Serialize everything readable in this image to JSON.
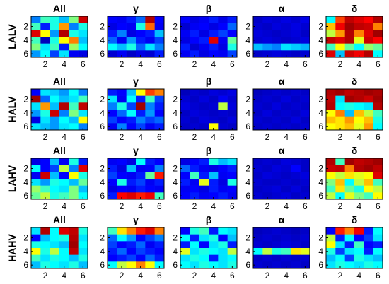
{
  "chart_data": {
    "type": "heatmap",
    "row_labels": [
      "LALV",
      "HALV",
      "LAHV",
      "HAHV"
    ],
    "column_titles": [
      [
        "All",
        "γ",
        "β",
        "α",
        "δ"
      ],
      [
        "All",
        "γ",
        "β",
        "α",
        "δ"
      ],
      [
        "All",
        "γ",
        "β",
        "α",
        "δ"
      ],
      [
        "All",
        "γ",
        "β",
        "α",
        "δ"
      ]
    ],
    "x_ticks": [
      "2",
      "4",
      "6"
    ],
    "y_ticks": [
      "2",
      "4",
      "6"
    ],
    "grid_size": 6,
    "colormap": [
      "#00008f",
      "#0000ff",
      "#00ffff",
      "#ffff00",
      "#ff0000",
      "#800000"
    ],
    "value_range": [
      0,
      1
    ],
    "panels": [
      [
        [
          [
            0.3,
            0.45,
            0.42,
            0.35,
            0.5,
            0.88
          ],
          [
            0.45,
            0.22,
            0.42,
            0.68,
            0.3,
            0.42
          ],
          [
            0.85,
            0.6,
            0.32,
            0.92,
            0.42,
            0.38
          ],
          [
            0.45,
            0.08,
            0.42,
            0.6,
            0.7,
            0.35
          ],
          [
            0.5,
            0.38,
            0.45,
            0.22,
            0.52,
            0.4
          ],
          [
            0.32,
            0.4,
            0.25,
            0.38,
            0.18,
            0.15
          ]
        ],
        [
          [
            0.2,
            0.18,
            0.22,
            0.28,
            0.92,
            0.2
          ],
          [
            0.15,
            0.2,
            0.18,
            0.42,
            0.72,
            0.18
          ],
          [
            0.22,
            0.3,
            0.15,
            0.2,
            0.22,
            0.35
          ],
          [
            0.28,
            0.18,
            0.32,
            0.22,
            0.18,
            0.25
          ],
          [
            0.4,
            0.35,
            0.42,
            0.28,
            0.38,
            0.3
          ],
          [
            0.12,
            0.18,
            0.1,
            0.15,
            0.12,
            0.22
          ]
        ],
        [
          [
            0.2,
            0.15,
            0.18,
            0.22,
            0.16,
            0.22
          ],
          [
            0.12,
            0.18,
            0.2,
            0.15,
            0.2,
            0.28
          ],
          [
            0.18,
            0.22,
            0.15,
            0.22,
            0.25,
            0.2
          ],
          [
            0.15,
            0.2,
            0.22,
            0.85,
            0.18,
            0.48
          ],
          [
            0.22,
            0.12,
            0.18,
            0.22,
            0.15,
            0.42
          ],
          [
            0.18,
            0.22,
            0.15,
            0.2,
            0.18,
            0.25
          ]
        ],
        [
          [
            0.1,
            0.14,
            0.12,
            0.15,
            0.12,
            0.16
          ],
          [
            0.12,
            0.1,
            0.14,
            0.12,
            0.15,
            0.12
          ],
          [
            0.14,
            0.12,
            0.1,
            0.12,
            0.14,
            0.1
          ],
          [
            0.12,
            0.14,
            0.12,
            0.1,
            0.12,
            0.14
          ],
          [
            0.35,
            0.32,
            0.3,
            0.38,
            0.36,
            0.34
          ],
          [
            0.1,
            0.12,
            0.14,
            0.12,
            0.1,
            0.12
          ]
        ],
        [
          [
            0.4,
            0.75,
            0.9,
            0.85,
            0.8,
            0.92
          ],
          [
            0.65,
            0.82,
            0.95,
            0.9,
            0.88,
            0.7
          ],
          [
            0.55,
            0.68,
            0.92,
            0.7,
            0.85,
            0.95
          ],
          [
            0.9,
            0.85,
            0.92,
            0.58,
            0.88,
            0.8
          ],
          [
            0.45,
            0.6,
            0.48,
            0.4,
            0.52,
            0.48
          ],
          [
            0.85,
            0.35,
            0.88,
            0.82,
            0.92,
            0.4
          ]
        ]
      ],
      [
        [
          [
            0.2,
            0.38,
            0.36,
            0.32,
            0.4,
            0.3
          ],
          [
            0.95,
            0.28,
            0.4,
            0.35,
            0.38,
            0.45
          ],
          [
            0.38,
            0.68,
            0.35,
            0.92,
            0.45,
            0.9
          ],
          [
            0.32,
            0.42,
            0.88,
            0.3,
            0.5,
            0.38
          ],
          [
            0.15,
            0.38,
            0.32,
            0.4,
            0.35,
            0.6
          ],
          [
            0.38,
            0.35,
            0.32,
            0.38,
            0.4,
            0.3
          ]
        ],
        [
          [
            0.22,
            0.2,
            0.35,
            0.6,
            0.75,
            0.7
          ],
          [
            0.38,
            0.18,
            0.4,
            0.22,
            0.45,
            0.25
          ],
          [
            0.3,
            0.42,
            0.25,
            0.95,
            0.3,
            0.22
          ],
          [
            0.2,
            0.28,
            0.4,
            0.22,
            0.32,
            0.2
          ],
          [
            0.25,
            0.2,
            0.22,
            0.3,
            0.25,
            0.28
          ],
          [
            0.18,
            0.3,
            0.2,
            0.25,
            0.18,
            0.22
          ]
        ],
        [
          [
            0.08,
            0.12,
            0.1,
            0.14,
            0.12,
            0.15
          ],
          [
            0.12,
            0.1,
            0.14,
            0.1,
            0.18,
            0.12
          ],
          [
            0.15,
            0.12,
            0.1,
            0.12,
            0.55,
            0.14
          ],
          [
            0.1,
            0.14,
            0.12,
            0.1,
            0.12,
            0.1
          ],
          [
            0.12,
            0.1,
            0.14,
            0.12,
            0.1,
            0.14
          ],
          [
            0.1,
            0.12,
            0.1,
            0.6,
            0.12,
            0.1
          ]
        ],
        [
          [
            0.08,
            0.1,
            0.12,
            0.1,
            0.12,
            0.1
          ],
          [
            0.1,
            0.12,
            0.1,
            0.14,
            0.1,
            0.12
          ],
          [
            0.12,
            0.1,
            0.14,
            0.1,
            0.12,
            0.1
          ],
          [
            0.1,
            0.14,
            0.1,
            0.12,
            0.1,
            0.14
          ],
          [
            0.12,
            0.1,
            0.12,
            0.1,
            0.14,
            0.1
          ],
          [
            0.1,
            0.12,
            0.1,
            0.12,
            0.1,
            0.12
          ]
        ],
        [
          [
            0.92,
            0.95,
            0.9,
            0.92,
            0.95,
            0.93
          ],
          [
            0.9,
            0.38,
            0.95,
            0.92,
            0.88,
            0.95
          ],
          [
            0.92,
            0.4,
            0.42,
            0.4,
            0.38,
            0.92
          ],
          [
            0.6,
            0.7,
            0.35,
            0.65,
            0.55,
            0.45
          ],
          [
            0.65,
            0.62,
            0.68,
            0.6,
            0.65,
            0.42
          ],
          [
            0.6,
            0.62,
            0.65,
            0.58,
            0.68,
            0.4
          ]
        ]
      ],
      [
        [
          [
            0.15,
            0.2,
            0.35,
            0.18,
            0.42,
            0.22
          ],
          [
            0.4,
            0.2,
            0.25,
            0.55,
            0.3,
            0.85
          ],
          [
            0.18,
            0.88,
            0.35,
            0.2,
            0.6,
            0.42
          ],
          [
            0.38,
            0.32,
            0.42,
            0.4,
            0.35,
            0.48
          ],
          [
            0.52,
            0.45,
            0.4,
            0.38,
            0.5,
            0.35
          ],
          [
            0.48,
            0.55,
            0.42,
            0.45,
            0.5,
            0.4
          ]
        ],
        [
          [
            0.18,
            0.2,
            0.15,
            0.4,
            0.22,
            0.2
          ],
          [
            0.22,
            0.15,
            0.35,
            0.18,
            0.2,
            0.3
          ],
          [
            0.25,
            0.2,
            0.18,
            0.22,
            0.48,
            0.78
          ],
          [
            0.2,
            0.42,
            0.22,
            0.25,
            0.18,
            0.22
          ],
          [
            0.15,
            0.2,
            0.18,
            0.22,
            0.2,
            0.18
          ],
          [
            0.22,
            0.8,
            0.85,
            0.78,
            0.82,
            0.45
          ]
        ],
        [
          [
            0.15,
            0.2,
            0.22,
            0.42,
            0.35,
            0.38
          ],
          [
            0.28,
            0.22,
            0.18,
            0.15,
            0.2,
            0.22
          ],
          [
            0.2,
            0.45,
            0.22,
            0.35,
            0.18,
            0.2
          ],
          [
            0.22,
            0.18,
            0.58,
            0.22,
            0.15,
            0.42
          ],
          [
            0.18,
            0.2,
            0.15,
            0.22,
            0.18,
            0.2
          ],
          [
            0.2,
            0.22,
            0.18,
            0.2,
            0.22,
            0.18
          ]
        ],
        [
          [
            0.1,
            0.12,
            0.1,
            0.14,
            0.12,
            0.1
          ],
          [
            0.12,
            0.1,
            0.14,
            0.12,
            0.2,
            0.1
          ],
          [
            0.1,
            0.14,
            0.12,
            0.1,
            0.12,
            0.14
          ],
          [
            0.12,
            0.1,
            0.1,
            0.12,
            0.1,
            0.12
          ],
          [
            0.1,
            0.12,
            0.14,
            0.1,
            0.14,
            0.1
          ],
          [
            0.12,
            0.1,
            0.12,
            0.14,
            0.1,
            0.12
          ]
        ],
        [
          [
            0.92,
            0.45,
            0.95,
            0.9,
            0.92,
            0.95
          ],
          [
            0.88,
            0.9,
            0.7,
            0.92,
            0.95,
            0.9
          ],
          [
            0.6,
            0.55,
            0.62,
            0.58,
            0.6,
            0.85
          ],
          [
            0.5,
            0.65,
            0.4,
            0.55,
            0.65,
            0.45
          ],
          [
            0.45,
            0.62,
            0.48,
            0.42,
            0.6,
            0.55
          ],
          [
            0.55,
            0.4,
            0.58,
            0.5,
            0.45,
            0.6
          ]
        ]
      ],
      [
        [
          [
            0.38,
            0.92,
            0.4,
            0.85,
            0.9,
            0.42
          ],
          [
            0.2,
            0.35,
            0.4,
            0.42,
            0.92,
            0.38
          ],
          [
            0.42,
            0.4,
            0.38,
            0.35,
            0.95,
            0.4
          ],
          [
            0.6,
            0.42,
            0.55,
            0.4,
            0.9,
            0.38
          ],
          [
            0.45,
            0.38,
            0.42,
            0.4,
            0.35,
            0.42
          ],
          [
            0.35,
            0.42,
            0.4,
            0.38,
            0.42,
            0.35
          ]
        ],
        [
          [
            0.45,
            0.62,
            0.7,
            0.78,
            0.85,
            0.7
          ],
          [
            0.28,
            0.4,
            0.32,
            0.2,
            0.25,
            0.3
          ],
          [
            0.25,
            0.2,
            0.22,
            0.28,
            0.18,
            0.22
          ],
          [
            0.22,
            0.28,
            0.2,
            0.25,
            0.22,
            0.2
          ],
          [
            0.2,
            0.22,
            0.25,
            0.2,
            0.28,
            0.22
          ],
          [
            0.4,
            0.55,
            0.6,
            0.7,
            0.6,
            0.4
          ]
        ],
        [
          [
            0.2,
            0.42,
            0.45,
            0.22,
            0.4,
            0.38
          ],
          [
            0.4,
            0.22,
            0.38,
            0.42,
            0.2,
            0.35
          ],
          [
            0.22,
            0.4,
            0.2,
            0.38,
            0.42,
            0.22
          ],
          [
            0.58,
            0.38,
            0.42,
            0.4,
            0.38,
            0.55
          ],
          [
            0.38,
            0.42,
            0.4,
            0.22,
            0.38,
            0.4
          ],
          [
            0.4,
            0.38,
            0.42,
            0.4,
            0.38,
            0.42
          ]
        ],
        [
          [
            0.08,
            0.1,
            0.12,
            0.1,
            0.08,
            0.1
          ],
          [
            0.1,
            0.12,
            0.1,
            0.12,
            0.1,
            0.12
          ],
          [
            0.12,
            0.1,
            0.12,
            0.14,
            0.12,
            0.1
          ],
          [
            0.4,
            0.55,
            0.42,
            0.45,
            0.62,
            0.58
          ],
          [
            0.1,
            0.12,
            0.1,
            0.12,
            0.1,
            0.12
          ],
          [
            0.12,
            0.1,
            0.12,
            0.1,
            0.12,
            0.1
          ]
        ],
        [
          [
            0.2,
            0.78,
            0.7,
            0.82,
            0.22,
            0.4
          ],
          [
            0.55,
            0.22,
            0.4,
            0.2,
            0.25,
            0.38
          ],
          [
            0.6,
            0.38,
            0.22,
            0.45,
            0.2,
            0.22
          ],
          [
            0.42,
            0.25,
            0.38,
            0.4,
            0.22,
            0.4
          ],
          [
            0.35,
            0.4,
            0.25,
            0.42,
            0.38,
            0.35
          ],
          [
            0.38,
            0.42,
            0.4,
            0.38,
            0.42,
            0.4
          ]
        ]
      ]
    ]
  }
}
